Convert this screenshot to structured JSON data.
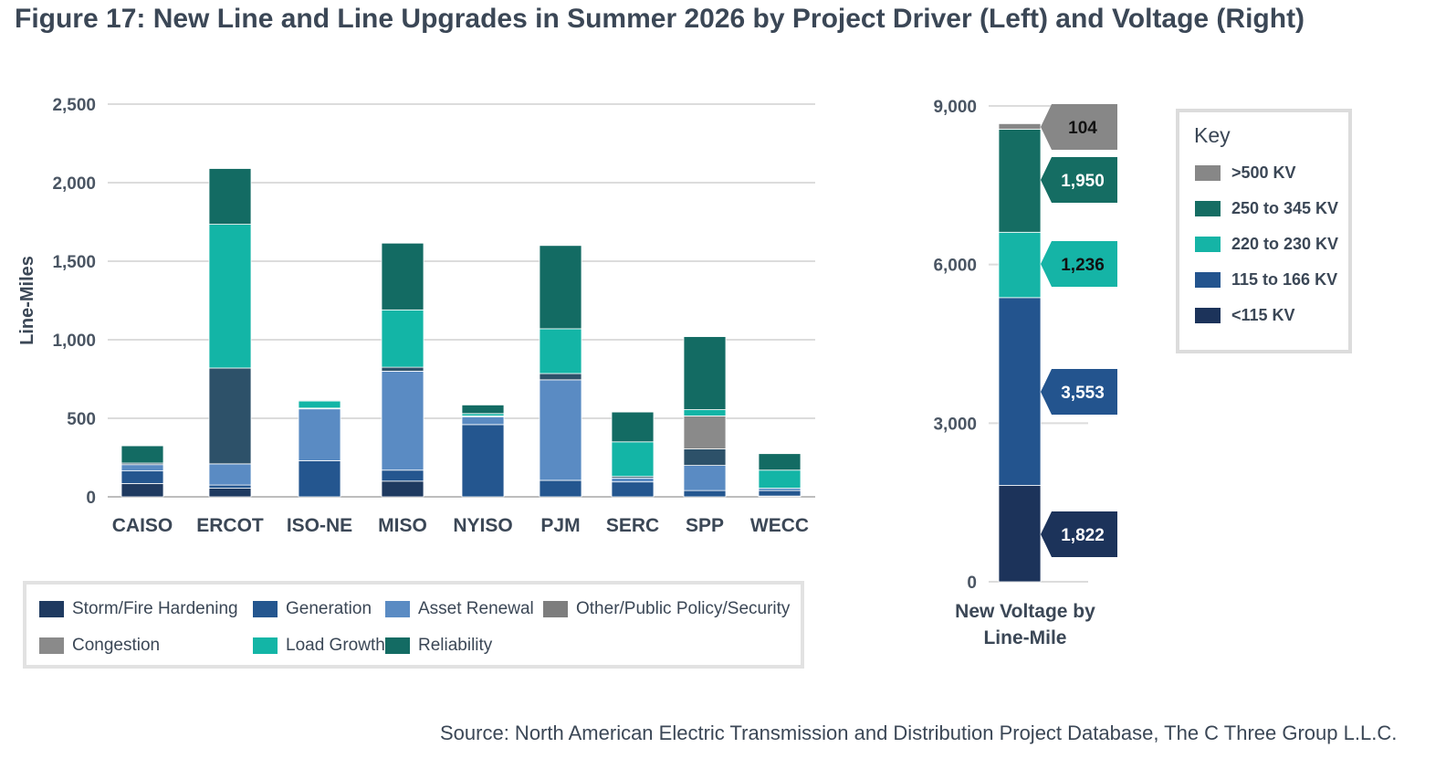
{
  "title": "Figure 17: New Line and Line Upgrades in Summer 2026 by Project Driver (Left) and Voltage (Right)",
  "source": "Source: North American Electric Transmission and Distribution Project Database, The C Three Group L.L.C.",
  "chart_data": [
    {
      "type": "bar",
      "stacked": true,
      "ylabel": "Line-Miles",
      "xlabel": "",
      "ylim": [
        0,
        2500
      ],
      "yticks": [
        0,
        500,
        1000,
        1500,
        2000,
        2500
      ],
      "ytick_labels": [
        "0",
        "500",
        "1,000",
        "1,500",
        "2,000",
        "2,500"
      ],
      "grid": true,
      "legend_position": "bottom",
      "categories": [
        "CAISO",
        "ERCOT",
        "ISO-NE",
        "MISO",
        "NYISO",
        "PJM",
        "SERC",
        "SPP",
        "WECC"
      ],
      "series": [
        {
          "name": "Storm/Fire Hardening",
          "color": "#1f3a60",
          "values": [
            85,
            55,
            0,
            100,
            0,
            0,
            0,
            0,
            5
          ]
        },
        {
          "name": "Generation",
          "color": "#24568f",
          "values": [
            80,
            20,
            230,
            70,
            460,
            105,
            95,
            40,
            35
          ]
        },
        {
          "name": "Asset Renewal",
          "color": "#5a8bc3",
          "values": [
            40,
            135,
            330,
            630,
            50,
            640,
            25,
            160,
            15
          ]
        },
        {
          "name": "Other/Public Policy/Security",
          "color": "#2d5169",
          "values": [
            10,
            610,
            5,
            25,
            5,
            40,
            10,
            105,
            0
          ]
        },
        {
          "name": "Congestion",
          "color": "#8a8a8a",
          "values": [
            0,
            0,
            0,
            0,
            0,
            0,
            0,
            210,
            0
          ]
        },
        {
          "name": "Load Growth",
          "color": "#13b5a6",
          "values": [
            0,
            915,
            45,
            365,
            15,
            285,
            220,
            40,
            115
          ]
        },
        {
          "name": "Reliability",
          "color": "#136b63",
          "values": [
            110,
            355,
            5,
            425,
            55,
            530,
            190,
            465,
            105
          ]
        }
      ]
    },
    {
      "type": "bar",
      "stacked": true,
      "xlabel": "New Voltage by Line-Mile",
      "ylabel": "",
      "ylim": [
        0,
        9000
      ],
      "yticks": [
        0,
        3000,
        6000,
        9000
      ],
      "ytick_labels": [
        "0",
        "3,000",
        "6,000",
        "9,000"
      ],
      "grid": true,
      "legend_position": "right",
      "legend_title": "Key",
      "categories": [
        "New Voltage by Line-Mile"
      ],
      "series": [
        {
          "name": "<115 KV",
          "color": "#1c335a",
          "values": [
            1822
          ],
          "label": "1,822"
        },
        {
          "name": "115 to 166 KV",
          "color": "#23548e",
          "values": [
            3553
          ],
          "label": "3,553"
        },
        {
          "name": "220 to 230 KV",
          "color": "#15b4a6",
          "values": [
            1236
          ],
          "label": "1,236"
        },
        {
          "name": "250 to 345 KV",
          "color": "#156d63",
          "values": [
            1950
          ],
          "label": "1,950"
        },
        {
          "name": ">500 KV",
          "color": "#878787",
          "values": [
            104
          ],
          "label": "104"
        }
      ]
    }
  ],
  "legend_left": [
    {
      "label": "Storm/Fire Hardening",
      "color": "#1f3a60"
    },
    {
      "label": "Generation",
      "color": "#24568f"
    },
    {
      "label": "Asset Renewal",
      "color": "#5a8bc3"
    },
    {
      "label": "Other/Public Policy/Security",
      "color": "#7d7d7d"
    },
    {
      "label": "Congestion",
      "color": "#8a8a8a"
    },
    {
      "label": "Load Growth",
      "color": "#13b5a6"
    },
    {
      "label": "Reliability",
      "color": "#136b63"
    }
  ],
  "key": {
    "title": "Key",
    "items": [
      {
        "label": ">500 KV",
        "color": "#878787"
      },
      {
        "label": "250 to 345 KV",
        "color": "#156d63"
      },
      {
        "label": "220 to 230 KV",
        "color": "#15b4a6"
      },
      {
        "label": "115 to 166 KV",
        "color": "#23548e"
      },
      {
        "label": "<115 KV",
        "color": "#1c335a"
      }
    ]
  }
}
